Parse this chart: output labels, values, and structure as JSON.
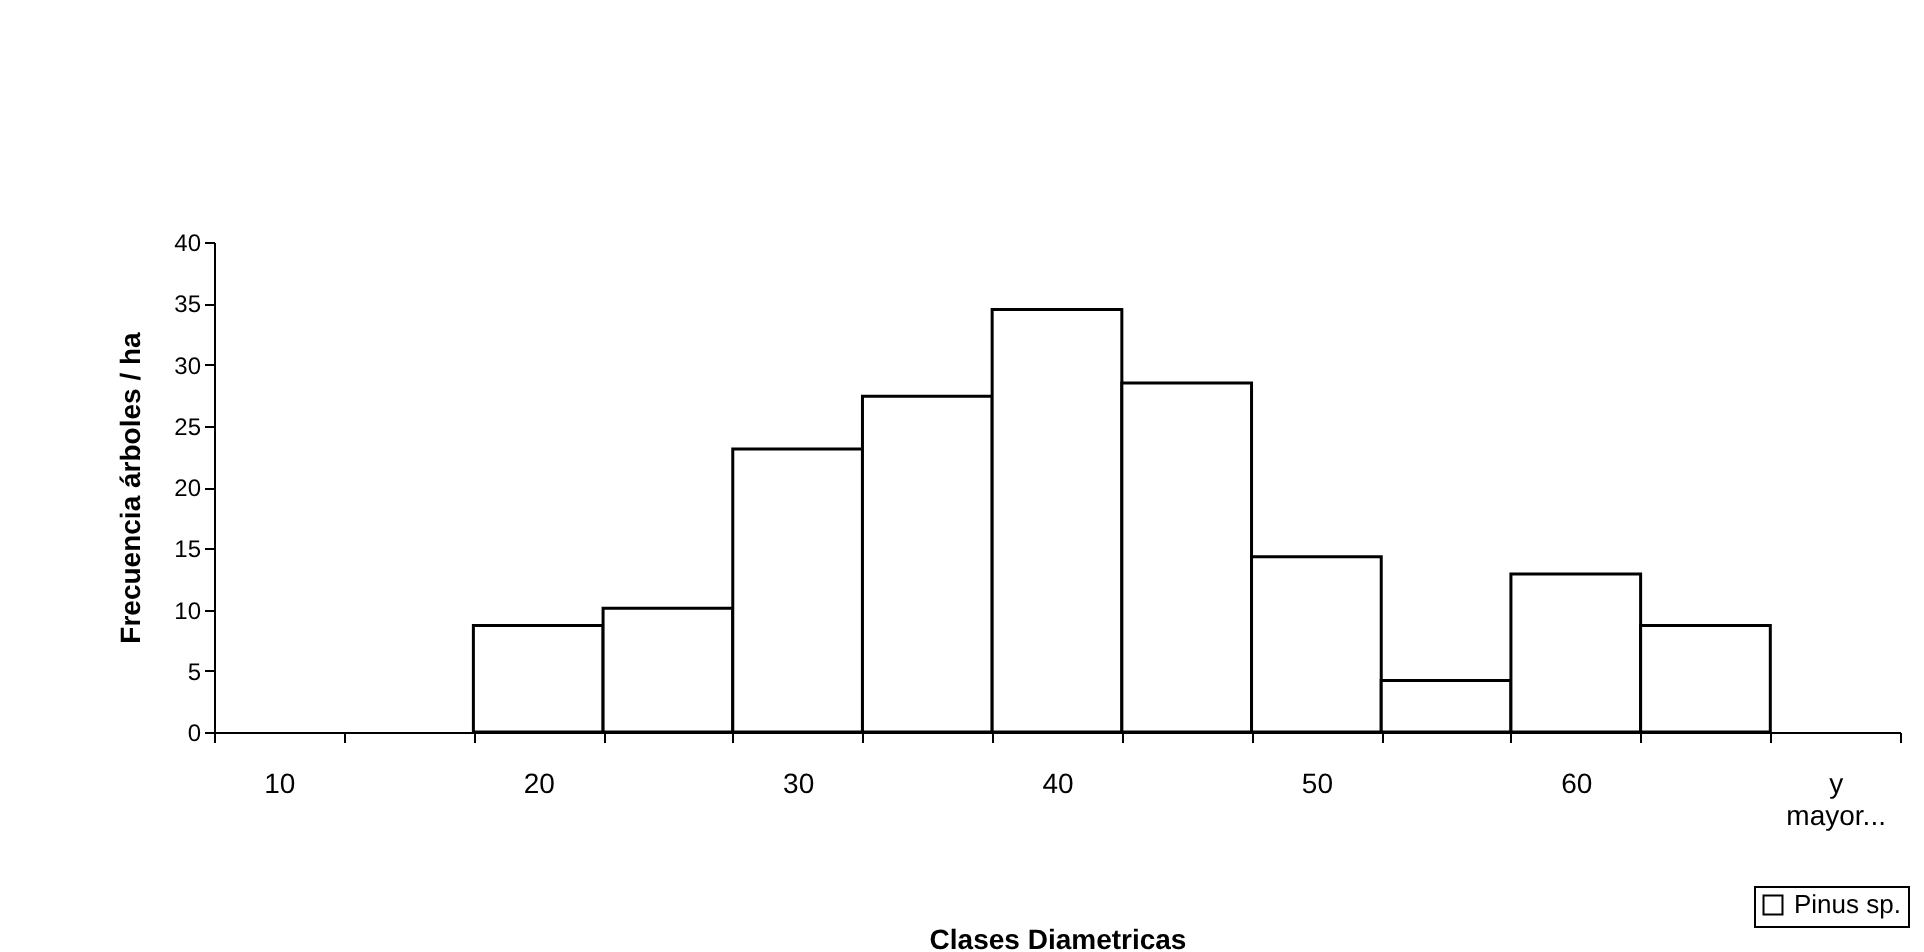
{
  "chart_data": {
    "type": "bar",
    "xlabel": "Clases Diametricas",
    "ylabel": "Frecuencia árboles / ha",
    "categories": [
      "10",
      null,
      "20",
      null,
      "30",
      null,
      "40",
      null,
      "50",
      null,
      "60",
      null,
      "y mayor..."
    ],
    "series": [
      {
        "name": "Pinus sp.",
        "color": "#ffffff",
        "values": [
          0,
          0,
          8.7,
          10.1,
          23.1,
          27.4,
          34.5,
          28.5,
          14.3,
          4.2,
          12.9,
          8.7,
          0
        ]
      }
    ],
    "ylim": [
      0,
      40
    ],
    "yticks": [
      0,
      5,
      10,
      15,
      20,
      25,
      30,
      35,
      40
    ],
    "grid": false,
    "legend": "bottom right"
  }
}
